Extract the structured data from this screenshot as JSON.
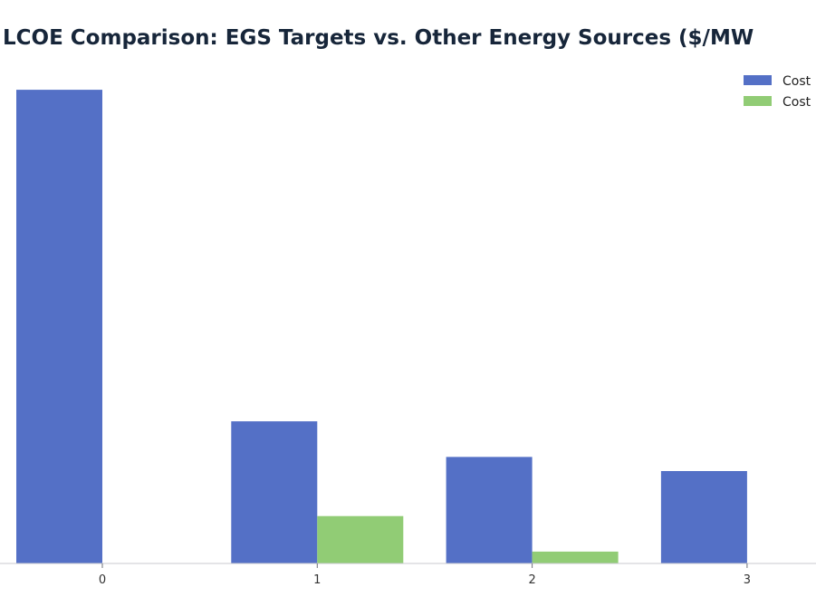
{
  "chart_data": {
    "type": "bar",
    "title": "LCOE Comparison: EGS Targets vs. Other Energy Sources ($/MW",
    "categories": [
      "0",
      "1",
      "2",
      "3"
    ],
    "series": [
      {
        "name": "Cost",
        "color": "#5470c6",
        "values": [
          200,
          60,
          45,
          39
        ]
      },
      {
        "name": "Cost",
        "color": "#91cc75",
        "values": [
          0,
          20,
          5,
          0
        ]
      }
    ],
    "ylim": [
      0,
      210
    ],
    "grid": false,
    "legend": "top-right",
    "xlabel": "",
    "ylabel": ""
  }
}
